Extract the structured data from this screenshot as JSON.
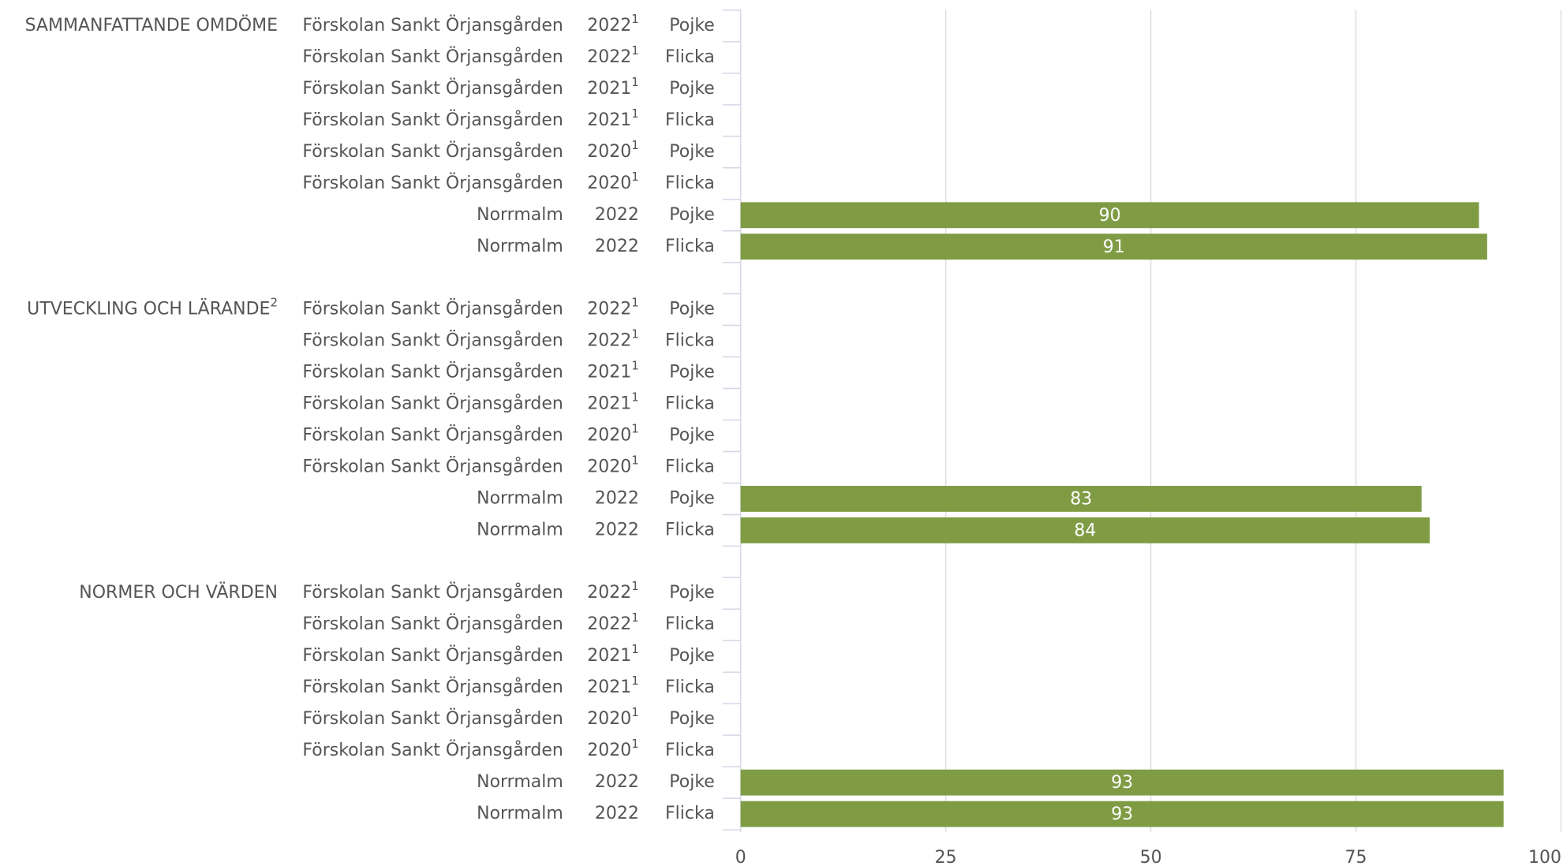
{
  "chart_data": {
    "type": "bar",
    "color": "#7f9c45",
    "xlim": [
      0,
      100
    ],
    "xticks": [
      0,
      25,
      50,
      75,
      100
    ],
    "grid": true,
    "groups": [
      {
        "name": "SAMMANFATTANDE OMDÖME",
        "categories": [
          [
            "Förskolan Sankt Örjansgården",
            "2022",
            "Pojke"
          ],
          [
            "Förskolan Sankt Örjansgården",
            "2022",
            "Flicka"
          ],
          [
            "Förskolan Sankt Örjansgården",
            "2021",
            "Pojke"
          ],
          [
            "Förskolan Sankt Örjansgården",
            "2021",
            "Flicka"
          ],
          [
            "Förskolan Sankt Örjansgården",
            "2020",
            "Pojke"
          ],
          [
            "Förskolan Sankt Örjansgården",
            "2020",
            "Flicka"
          ],
          [
            "Norrmalm",
            "2022",
            "Pojke"
          ],
          [
            "Norrmalm",
            "2022",
            "Flicka"
          ]
        ],
        "category_notes": [
          "1",
          "1",
          "1",
          "1",
          "1",
          "1",
          null,
          null
        ],
        "values": [
          null,
          null,
          null,
          null,
          null,
          null,
          90,
          91
        ]
      },
      {
        "name": "UTVECKLING OCH LÄRANDE",
        "note": "2",
        "categories": [
          [
            "Förskolan Sankt Örjansgården",
            "2022",
            "Pojke"
          ],
          [
            "Förskolan Sankt Örjansgården",
            "2022",
            "Flicka"
          ],
          [
            "Förskolan Sankt Örjansgården",
            "2021",
            "Pojke"
          ],
          [
            "Förskolan Sankt Örjansgården",
            "2021",
            "Flicka"
          ],
          [
            "Förskolan Sankt Örjansgården",
            "2020",
            "Pojke"
          ],
          [
            "Förskolan Sankt Örjansgården",
            "2020",
            "Flicka"
          ],
          [
            "Norrmalm",
            "2022",
            "Pojke"
          ],
          [
            "Norrmalm",
            "2022",
            "Flicka"
          ]
        ],
        "category_notes": [
          "1",
          "1",
          "1",
          "1",
          "1",
          "1",
          null,
          null
        ],
        "values": [
          null,
          null,
          null,
          null,
          null,
          null,
          83,
          84
        ]
      },
      {
        "name": "NORMER OCH VÄRDEN",
        "categories": [
          [
            "Förskolan Sankt Örjansgården",
            "2022",
            "Pojke"
          ],
          [
            "Förskolan Sankt Örjansgården",
            "2022",
            "Flicka"
          ],
          [
            "Förskolan Sankt Örjansgården",
            "2021",
            "Pojke"
          ],
          [
            "Förskolan Sankt Örjansgården",
            "2021",
            "Flicka"
          ],
          [
            "Förskolan Sankt Örjansgården",
            "2020",
            "Pojke"
          ],
          [
            "Förskolan Sankt Örjansgården",
            "2020",
            "Flicka"
          ],
          [
            "Norrmalm",
            "2022",
            "Pojke"
          ],
          [
            "Norrmalm",
            "2022",
            "Flicka"
          ]
        ],
        "category_notes": [
          "1",
          "1",
          "1",
          "1",
          "1",
          "1",
          null,
          null
        ],
        "values": [
          null,
          null,
          null,
          null,
          null,
          null,
          93,
          93
        ]
      }
    ]
  }
}
